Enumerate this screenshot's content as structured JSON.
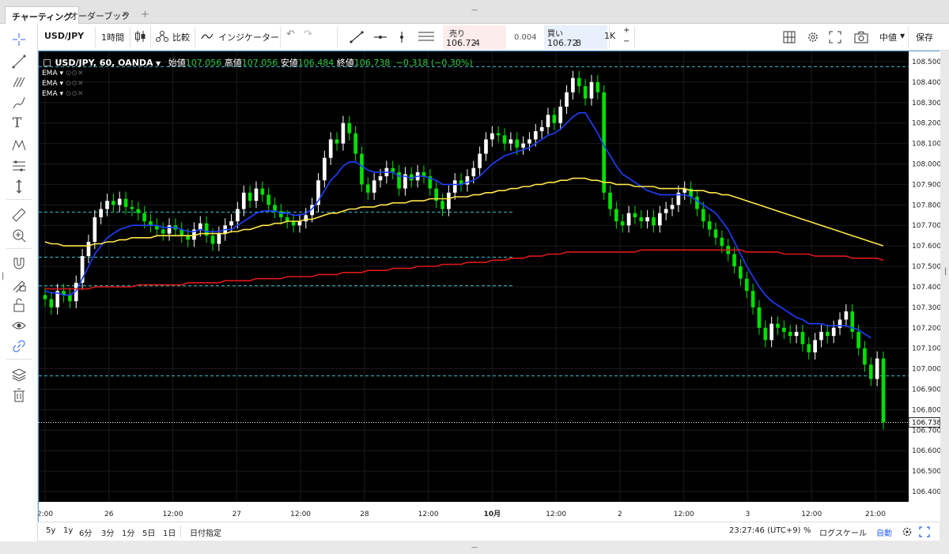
{
  "tabs": [
    {
      "label": "チャーティング",
      "active": true
    },
    {
      "label": "オーダーブック",
      "active": false
    }
  ],
  "tab_close": "✕",
  "tab_add": "+",
  "toolbar": {
    "symbol": "USD/JPY",
    "interval": "1時間",
    "compare": "比較",
    "indicators": "インジケーター",
    "sell_label": "売り",
    "sell_price_main": "106.72",
    "sell_price_tail": "4",
    "spread": "0.004",
    "buy_label": "買い",
    "buy_price_main": "106.72",
    "buy_price_tail": "8",
    "quantity": "1K",
    "price_type": "中値",
    "save": "保存"
  },
  "legend": {
    "title": "USD/JPY, 60, OANDA",
    "open_label": "始値",
    "open_value": "107.056",
    "high_label": "高値",
    "high_value": "107.056",
    "low_label": "安値",
    "low_value": "106.484",
    "close_label": "終値",
    "close_value": "106.738",
    "change": "−0.318 (−0.30%)",
    "indicators": [
      "EMA",
      "EMA",
      "EMA"
    ]
  },
  "bottom": {
    "ranges": [
      "5y",
      "1y",
      "6分",
      "3分",
      "1分",
      "5日",
      "1日"
    ],
    "goto_date": "日付指定",
    "clock": "23:27:46 (UTC+9)",
    "percent": "%",
    "log_scale": "ログスケール",
    "auto": "自動"
  },
  "colors": {
    "background": "#000000",
    "up_candle": "#ffffff",
    "down_candle": "#00e000",
    "ema_fast": "#1f3fff",
    "ema_mid": "#ffe84a",
    "ema_slow": "#e01818",
    "hline": "#3ec1c9",
    "price_line": "#ffffff",
    "legend_value": "#2ecc40",
    "legend_change": "#2ecc40",
    "sell": "#e0284e",
    "buy": "#2962ff",
    "auto_text": "#2962ff"
  },
  "chart_data": {
    "type": "line",
    "title": "USD/JPY, 60, OANDA",
    "x_ticks": [
      "2:00",
      "26",
      "12:00",
      "27",
      "12:00",
      "28",
      "12:00",
      "10月",
      "12:00",
      "2",
      "12:00",
      "3",
      "12:00",
      "21:00"
    ],
    "y_ticks": [
      "108.500",
      "108.400",
      "108.300",
      "108.200",
      "108.100",
      "108.000",
      "107.900",
      "107.800",
      "107.700",
      "107.600",
      "107.500",
      "107.400",
      "107.300",
      "107.200",
      "107.100",
      "107.000",
      "106.900",
      "106.800",
      "106.700",
      "106.600",
      "106.500",
      "106.400"
    ],
    "ylim": [
      106.35,
      108.55
    ],
    "last_price_label": "106.738",
    "last_price": 106.738,
    "horizontal_levels": [
      108.475,
      107.765,
      107.545,
      107.405,
      106.965
    ],
    "close": [
      107.34,
      107.3,
      107.38,
      107.36,
      107.33,
      107.42,
      107.55,
      107.62,
      107.74,
      107.78,
      107.82,
      107.8,
      107.83,
      107.79,
      107.78,
      107.76,
      107.72,
      107.7,
      107.68,
      107.66,
      107.7,
      107.68,
      107.65,
      107.63,
      107.68,
      107.71,
      107.65,
      107.61,
      107.66,
      107.7,
      107.72,
      107.78,
      107.86,
      107.82,
      107.88,
      107.85,
      107.8,
      107.77,
      107.74,
      107.72,
      107.7,
      107.72,
      107.75,
      107.8,
      107.92,
      108.03,
      108.12,
      108.1,
      108.2,
      108.15,
      108.05,
      107.9,
      107.86,
      107.92,
      107.94,
      107.98,
      107.96,
      107.88,
      107.95,
      107.92,
      107.96,
      107.94,
      107.88,
      107.82,
      107.78,
      107.86,
      107.92,
      107.9,
      107.94,
      107.98,
      108.05,
      108.12,
      108.15,
      108.14,
      108.1,
      108.12,
      108.08,
      108.1,
      108.12,
      108.16,
      108.18,
      108.24,
      108.2,
      108.28,
      108.35,
      108.42,
      108.38,
      108.32,
      108.4,
      108.35,
      107.86,
      107.78,
      107.72,
      107.7,
      107.76,
      107.74,
      107.72,
      107.74,
      107.7,
      107.76,
      107.78,
      107.8,
      107.86,
      107.88,
      107.84,
      107.78,
      107.72,
      107.68,
      107.64,
      107.6,
      107.56,
      107.5,
      107.44,
      107.38,
      107.3,
      107.2,
      107.14,
      107.22,
      107.2,
      107.18,
      107.16,
      107.18,
      107.12,
      107.08,
      107.14,
      107.18,
      107.16,
      107.2,
      107.24,
      107.28,
      107.18,
      107.1,
      107.02,
      106.95,
      107.05,
      106.738
    ],
    "ema_fast": [
      107.38,
      107.37,
      107.37,
      107.36,
      107.36,
      107.38,
      107.44,
      107.5,
      107.56,
      107.6,
      107.64,
      107.66,
      107.68,
      107.69,
      107.7,
      107.7,
      107.7,
      107.7,
      107.7,
      107.69,
      107.69,
      107.69,
      107.68,
      107.67,
      107.67,
      107.68,
      107.67,
      107.67,
      107.67,
      107.68,
      107.68,
      107.7,
      107.72,
      107.74,
      107.76,
      107.77,
      107.77,
      107.77,
      107.76,
      107.76,
      107.75,
      107.75,
      107.76,
      107.78,
      107.82,
      107.87,
      107.92,
      107.95,
      107.99,
      108.01,
      108.01,
      107.99,
      107.97,
      107.96,
      107.96,
      107.96,
      107.96,
      107.94,
      107.94,
      107.93,
      107.94,
      107.94,
      107.93,
      107.92,
      107.9,
      107.9,
      107.9,
      107.9,
      107.91,
      107.92,
      107.94,
      107.97,
      108.0,
      108.02,
      108.04,
      108.05,
      108.06,
      108.07,
      108.08,
      108.1,
      108.12,
      108.14,
      108.15,
      108.17,
      108.2,
      108.23,
      108.25,
      108.25,
      108.2,
      108.15,
      108.09,
      108.04,
      107.99,
      107.95,
      107.93,
      107.91,
      107.89,
      107.87,
      107.86,
      107.85,
      107.85,
      107.85,
      107.85,
      107.85,
      107.84,
      107.82,
      107.8,
      107.78,
      107.76,
      107.72,
      107.68,
      107.62,
      107.56,
      107.5,
      107.45,
      107.4,
      107.36,
      107.33,
      107.31,
      107.29,
      107.27,
      107.25,
      107.24,
      107.22,
      107.22,
      107.22,
      107.21,
      107.21,
      107.21,
      107.21,
      107.2,
      107.19,
      107.17,
      107.15
    ],
    "ema_mid": [
      107.62,
      107.61,
      107.61,
      107.6,
      107.6,
      107.6,
      107.6,
      107.6,
      107.61,
      107.61,
      107.62,
      107.62,
      107.63,
      107.63,
      107.64,
      107.64,
      107.64,
      107.64,
      107.65,
      107.65,
      107.65,
      107.65,
      107.65,
      107.65,
      107.65,
      107.66,
      107.66,
      107.66,
      107.66,
      107.66,
      107.67,
      107.67,
      107.68,
      107.68,
      107.69,
      107.7,
      107.7,
      107.71,
      107.71,
      107.72,
      107.72,
      107.72,
      107.73,
      107.73,
      107.74,
      107.75,
      107.76,
      107.76,
      107.77,
      107.78,
      107.78,
      107.79,
      107.79,
      107.79,
      107.8,
      107.8,
      107.81,
      107.81,
      107.81,
      107.82,
      107.82,
      107.82,
      107.83,
      107.83,
      107.83,
      107.83,
      107.84,
      107.84,
      107.84,
      107.85,
      107.85,
      107.86,
      107.86,
      107.87,
      107.87,
      107.88,
      107.88,
      107.89,
      107.89,
      107.9,
      107.9,
      107.91,
      107.91,
      107.92,
      107.92,
      107.93,
      107.93,
      107.93,
      107.92,
      107.92,
      107.91,
      107.91,
      107.9,
      107.9,
      107.9,
      107.89,
      107.89,
      107.89,
      107.89,
      107.88,
      107.88,
      107.88,
      107.88,
      107.88,
      107.87,
      107.87,
      107.87,
      107.86,
      107.86,
      107.85,
      107.85,
      107.84,
      107.83,
      107.82,
      107.81,
      107.8,
      107.79,
      107.78,
      107.77,
      107.76,
      107.75,
      107.74,
      107.73,
      107.72,
      107.71,
      107.7,
      107.69,
      107.68,
      107.67,
      107.66,
      107.65,
      107.64,
      107.63,
      107.62,
      107.61,
      107.6
    ],
    "ema_slow": [
      107.39,
      107.39,
      107.39,
      107.39,
      107.39,
      107.39,
      107.39,
      107.39,
      107.4,
      107.4,
      107.4,
      107.4,
      107.4,
      107.4,
      107.4,
      107.41,
      107.41,
      107.41,
      107.41,
      107.41,
      107.41,
      107.41,
      107.41,
      107.42,
      107.42,
      107.42,
      107.42,
      107.42,
      107.42,
      107.43,
      107.43,
      107.43,
      107.43,
      107.43,
      107.44,
      107.44,
      107.44,
      107.44,
      107.44,
      107.45,
      107.45,
      107.45,
      107.45,
      107.45,
      107.46,
      107.46,
      107.46,
      107.46,
      107.47,
      107.47,
      107.47,
      107.47,
      107.48,
      107.48,
      107.48,
      107.48,
      107.49,
      107.49,
      107.49,
      107.49,
      107.5,
      107.5,
      107.5,
      107.5,
      107.51,
      107.51,
      107.51,
      107.51,
      107.52,
      107.52,
      107.52,
      107.52,
      107.53,
      107.53,
      107.53,
      107.54,
      107.54,
      107.54,
      107.55,
      107.55,
      107.55,
      107.56,
      107.56,
      107.56,
      107.57,
      107.57,
      107.57,
      107.57,
      107.57,
      107.57,
      107.57,
      107.57,
      107.57,
      107.57,
      107.57,
      107.57,
      107.58,
      107.58,
      107.58,
      107.58,
      107.58,
      107.58,
      107.58,
      107.58,
      107.58,
      107.58,
      107.58,
      107.58,
      107.58,
      107.58,
      107.58,
      107.58,
      107.58,
      107.57,
      107.57,
      107.57,
      107.57,
      107.57,
      107.57,
      107.56,
      107.56,
      107.56,
      107.56,
      107.56,
      107.55,
      107.55,
      107.55,
      107.55,
      107.55,
      107.55,
      107.54,
      107.54,
      107.54,
      107.54,
      107.54,
      107.53
    ]
  }
}
